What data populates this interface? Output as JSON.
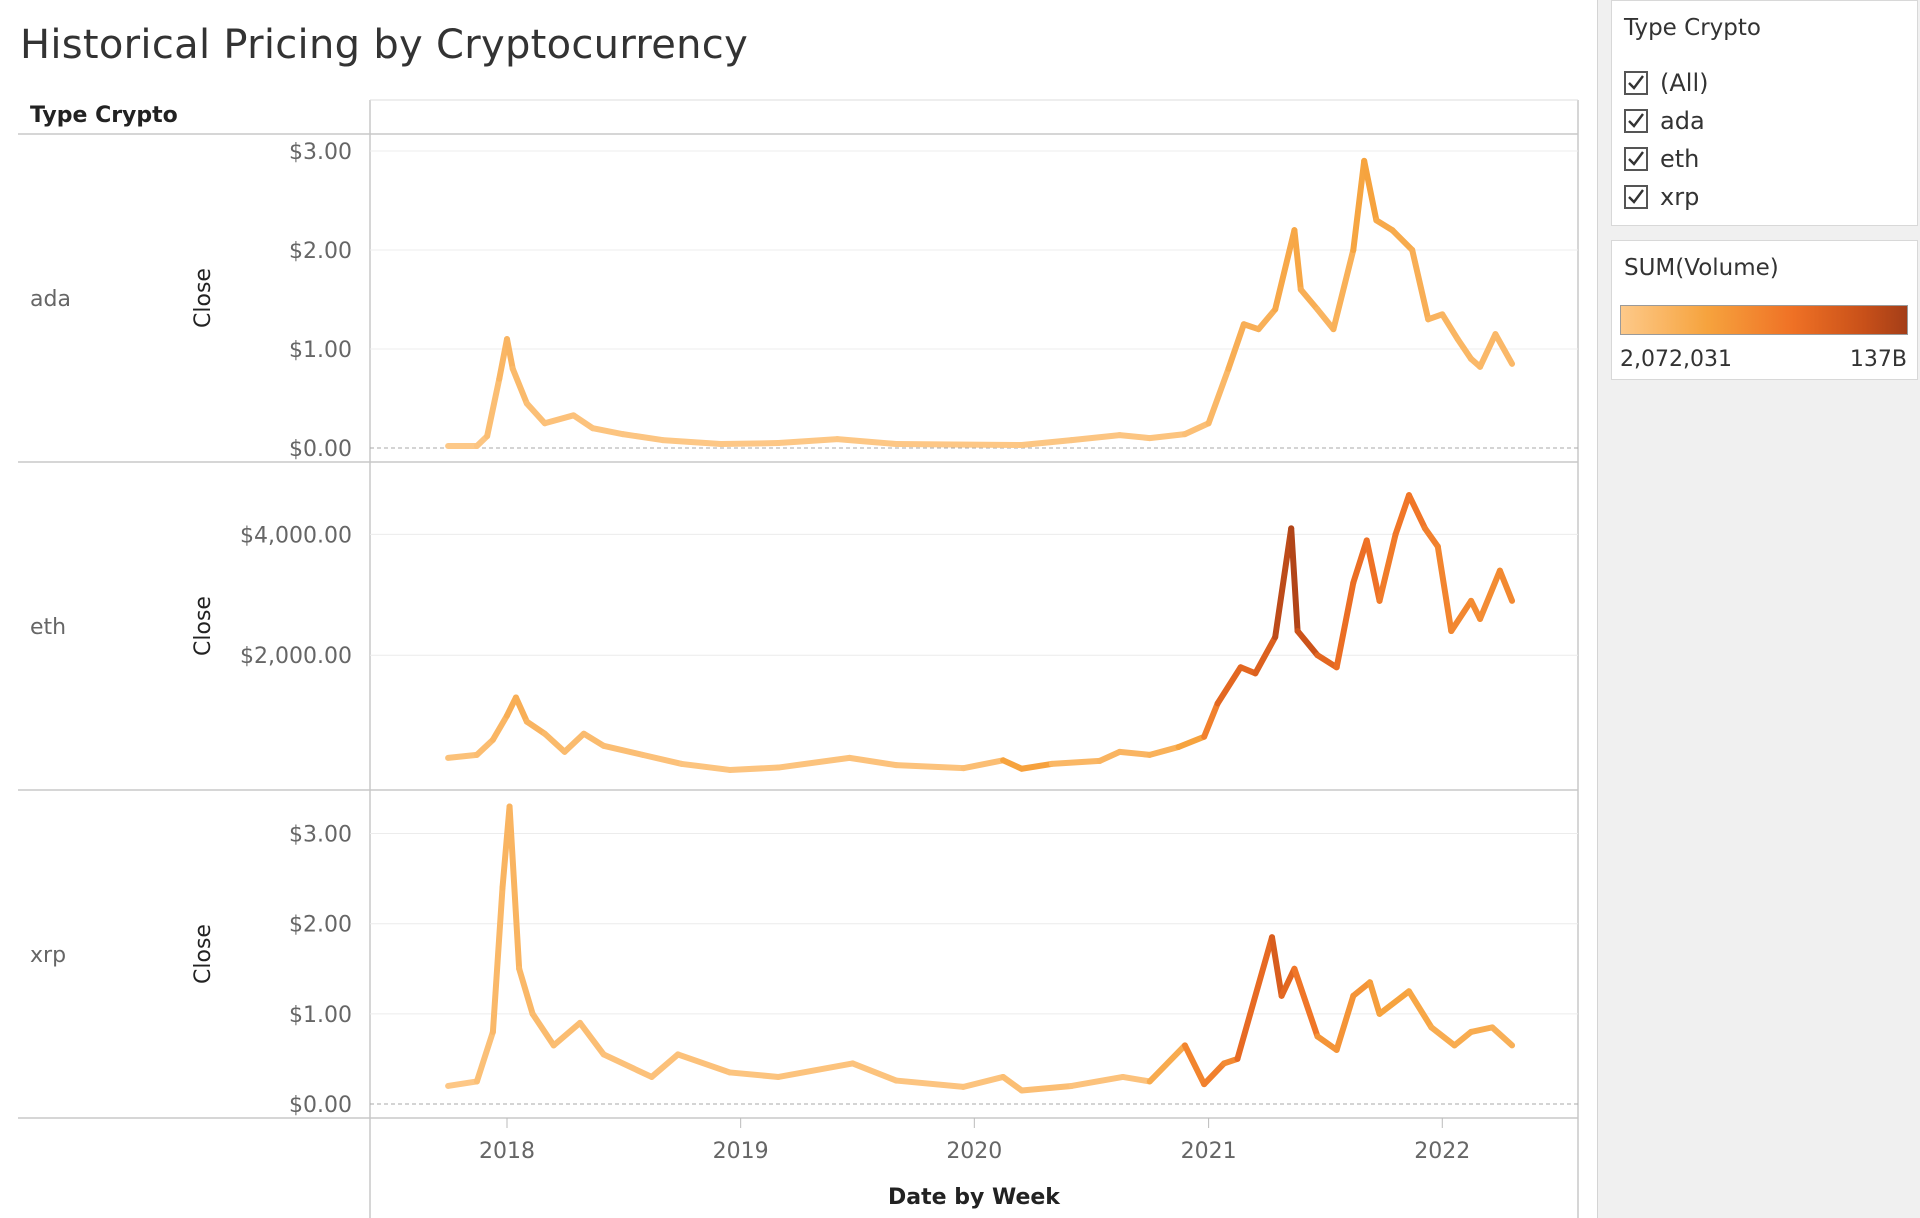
{
  "title": "Historical Pricing by Cryptocurrency",
  "row_header": "Type Crypto",
  "filter": {
    "title": "Type Crypto",
    "items": [
      {
        "label": "(All)",
        "checked": true
      },
      {
        "label": "ada",
        "checked": true
      },
      {
        "label": "eth",
        "checked": true
      },
      {
        "label": "xrp",
        "checked": true
      }
    ]
  },
  "legend": {
    "title": "SUM(Volume)",
    "min_label": "2,072,031",
    "max_label": "137B",
    "colors": [
      "#fdc989",
      "#f6a33e",
      "#ef7125",
      "#c85019",
      "#a43e18"
    ]
  },
  "chart_data": {
    "type": "line",
    "title": "Historical Pricing by Cryptocurrency",
    "xlabel": "Date by Week",
    "ylabel": "Close",
    "x_ticks": [
      "2018",
      "2019",
      "2020",
      "2021",
      "2022"
    ],
    "xlim": [
      "2017-06-01",
      "2022-08-01"
    ],
    "grid": true,
    "series": [
      {
        "name": "ada",
        "ylim": [
          0,
          3.05
        ],
        "y_ticks": [
          "$0.00",
          "$1.00",
          "$2.00",
          "$3.00"
        ],
        "y_tick_values": [
          0,
          1,
          2,
          3
        ],
        "points": [
          [
            "2017-10-01",
            0.02,
            0.0
          ],
          [
            "2017-11-15",
            0.02,
            0.0
          ],
          [
            "2017-12-01",
            0.12,
            0.05
          ],
          [
            "2017-12-20",
            0.7,
            0.1
          ],
          [
            "2018-01-01",
            1.1,
            0.15
          ],
          [
            "2018-01-10",
            0.8,
            0.12
          ],
          [
            "2018-02-01",
            0.45,
            0.08
          ],
          [
            "2018-03-01",
            0.25,
            0.05
          ],
          [
            "2018-04-15",
            0.33,
            0.05
          ],
          [
            "2018-05-15",
            0.2,
            0.04
          ],
          [
            "2018-07-01",
            0.14,
            0.03
          ],
          [
            "2018-09-01",
            0.08,
            0.02
          ],
          [
            "2018-12-01",
            0.04,
            0.01
          ],
          [
            "2019-03-01",
            0.05,
            0.01
          ],
          [
            "2019-06-01",
            0.09,
            0.02
          ],
          [
            "2019-09-01",
            0.04,
            0.01
          ],
          [
            "2019-12-01",
            0.035,
            0.01
          ],
          [
            "2020-03-15",
            0.03,
            0.02
          ],
          [
            "2020-06-01",
            0.08,
            0.02
          ],
          [
            "2020-08-15",
            0.13,
            0.03
          ],
          [
            "2020-10-01",
            0.1,
            0.02
          ],
          [
            "2020-11-25",
            0.14,
            0.05
          ],
          [
            "2021-01-01",
            0.25,
            0.08
          ],
          [
            "2021-02-01",
            0.8,
            0.15
          ],
          [
            "2021-02-25",
            1.25,
            0.2
          ],
          [
            "2021-03-20",
            1.2,
            0.15
          ],
          [
            "2021-04-15",
            1.4,
            0.18
          ],
          [
            "2021-05-15",
            2.2,
            0.25
          ],
          [
            "2021-05-25",
            1.6,
            0.2
          ],
          [
            "2021-06-20",
            1.4,
            0.15
          ],
          [
            "2021-07-15",
            1.2,
            0.12
          ],
          [
            "2021-08-15",
            2.0,
            0.2
          ],
          [
            "2021-09-01",
            2.9,
            0.28
          ],
          [
            "2021-09-20",
            2.3,
            0.22
          ],
          [
            "2021-10-15",
            2.2,
            0.2
          ],
          [
            "2021-11-15",
            2.0,
            0.2
          ],
          [
            "2021-12-10",
            1.3,
            0.15
          ],
          [
            "2022-01-01",
            1.35,
            0.14
          ],
          [
            "2022-01-25",
            1.1,
            0.12
          ],
          [
            "2022-02-15",
            0.9,
            0.12
          ],
          [
            "2022-03-01",
            0.82,
            0.1
          ],
          [
            "2022-03-25",
            1.15,
            0.12
          ],
          [
            "2022-04-20",
            0.85,
            0.1
          ]
        ]
      },
      {
        "name": "eth",
        "ylim": [
          0,
          5000
        ],
        "y_ticks": [
          "$2,000.00",
          "$4,000.00"
        ],
        "y_tick_values": [
          2000,
          4000
        ],
        "points": [
          [
            "2017-10-01",
            300,
            0.05
          ],
          [
            "2017-11-15",
            350,
            0.06
          ],
          [
            "2017-12-10",
            600,
            0.1
          ],
          [
            "2018-01-01",
            1000,
            0.15
          ],
          [
            "2018-01-15",
            1300,
            0.2
          ],
          [
            "2018-02-01",
            900,
            0.15
          ],
          [
            "2018-03-01",
            700,
            0.12
          ],
          [
            "2018-04-01",
            400,
            0.08
          ],
          [
            "2018-05-01",
            700,
            0.1
          ],
          [
            "2018-06-01",
            500,
            0.08
          ],
          [
            "2018-08-01",
            350,
            0.06
          ],
          [
            "2018-10-01",
            200,
            0.04
          ],
          [
            "2018-12-15",
            100,
            0.03
          ],
          [
            "2019-03-01",
            140,
            0.03
          ],
          [
            "2019-06-20",
            300,
            0.05
          ],
          [
            "2019-09-01",
            180,
            0.04
          ],
          [
            "2019-12-15",
            130,
            0.04
          ],
          [
            "2020-02-15",
            260,
            0.1
          ],
          [
            "2020-03-15",
            120,
            0.4
          ],
          [
            "2020-05-01",
            200,
            0.12
          ],
          [
            "2020-07-15",
            250,
            0.12
          ],
          [
            "2020-08-15",
            400,
            0.15
          ],
          [
            "2020-10-01",
            350,
            0.12
          ],
          [
            "2020-11-15",
            480,
            0.2
          ],
          [
            "2020-12-25",
            650,
            0.3
          ],
          [
            "2021-01-15",
            1200,
            0.55
          ],
          [
            "2021-02-20",
            1800,
            0.6
          ],
          [
            "2021-03-15",
            1700,
            0.55
          ],
          [
            "2021-04-15",
            2300,
            0.7
          ],
          [
            "2021-05-10",
            4100,
            0.95
          ],
          [
            "2021-05-20",
            2400,
            0.85
          ],
          [
            "2021-06-20",
            2000,
            0.6
          ],
          [
            "2021-07-20",
            1800,
            0.55
          ],
          [
            "2021-08-15",
            3200,
            0.5
          ],
          [
            "2021-09-05",
            3900,
            0.55
          ],
          [
            "2021-09-25",
            2900,
            0.45
          ],
          [
            "2021-10-20",
            4000,
            0.45
          ],
          [
            "2021-11-10",
            4650,
            0.5
          ],
          [
            "2021-12-05",
            4100,
            0.45
          ],
          [
            "2021-12-25",
            3800,
            0.4
          ],
          [
            "2022-01-15",
            2400,
            0.4
          ],
          [
            "2022-02-15",
            2900,
            0.38
          ],
          [
            "2022-03-01",
            2600,
            0.35
          ],
          [
            "2022-04-01",
            3400,
            0.38
          ],
          [
            "2022-04-20",
            2900,
            0.38
          ]
        ]
      },
      {
        "name": "xrp",
        "ylim": [
          0,
          3.35
        ],
        "y_ticks": [
          "$0.00",
          "$1.00",
          "$2.00",
          "$3.00"
        ],
        "y_tick_values": [
          0,
          1,
          2,
          3
        ],
        "points": [
          [
            "2017-10-01",
            0.2,
            0.0
          ],
          [
            "2017-11-15",
            0.25,
            0.02
          ],
          [
            "2017-12-10",
            0.8,
            0.1
          ],
          [
            "2017-12-25",
            2.4,
            0.12
          ],
          [
            "2018-01-05",
            3.3,
            0.15
          ],
          [
            "2018-01-20",
            1.5,
            0.12
          ],
          [
            "2018-02-10",
            1.0,
            0.1
          ],
          [
            "2018-03-15",
            0.65,
            0.08
          ],
          [
            "2018-04-25",
            0.9,
            0.08
          ],
          [
            "2018-06-01",
            0.55,
            0.06
          ],
          [
            "2018-08-15",
            0.3,
            0.04
          ],
          [
            "2018-09-25",
            0.55,
            0.06
          ],
          [
            "2018-12-15",
            0.35,
            0.04
          ],
          [
            "2019-03-01",
            0.3,
            0.03
          ],
          [
            "2019-06-25",
            0.45,
            0.05
          ],
          [
            "2019-09-01",
            0.26,
            0.03
          ],
          [
            "2019-12-15",
            0.19,
            0.03
          ],
          [
            "2020-02-15",
            0.3,
            0.05
          ],
          [
            "2020-03-15",
            0.15,
            0.1
          ],
          [
            "2020-06-01",
            0.2,
            0.04
          ],
          [
            "2020-08-20",
            0.3,
            0.05
          ],
          [
            "2020-10-01",
            0.25,
            0.04
          ],
          [
            "2020-11-25",
            0.65,
            0.35
          ],
          [
            "2020-12-25",
            0.22,
            0.45
          ],
          [
            "2021-01-25",
            0.45,
            0.4
          ],
          [
            "2021-02-15",
            0.5,
            0.35
          ],
          [
            "2021-04-10",
            1.85,
            0.75
          ],
          [
            "2021-04-25",
            1.2,
            0.55
          ],
          [
            "2021-05-15",
            1.5,
            0.6
          ],
          [
            "2021-06-20",
            0.75,
            0.35
          ],
          [
            "2021-07-20",
            0.6,
            0.3
          ],
          [
            "2021-08-15",
            1.2,
            0.35
          ],
          [
            "2021-09-10",
            1.35,
            0.3
          ],
          [
            "2021-09-25",
            1.0,
            0.25
          ],
          [
            "2021-11-10",
            1.25,
            0.25
          ],
          [
            "2021-12-15",
            0.85,
            0.2
          ],
          [
            "2022-01-20",
            0.65,
            0.18
          ],
          [
            "2022-02-15",
            0.8,
            0.2
          ],
          [
            "2022-03-20",
            0.85,
            0.18
          ],
          [
            "2022-04-20",
            0.65,
            0.15
          ]
        ]
      }
    ]
  }
}
